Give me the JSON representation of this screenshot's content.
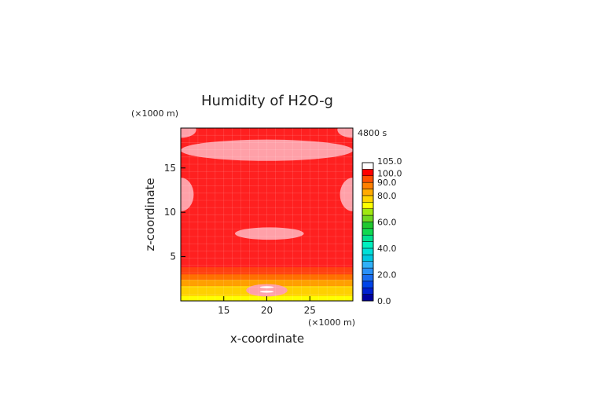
{
  "chart_data": {
    "type": "heatmap",
    "title": "Humidity of H2O-g",
    "xlabel": "x-coordinate",
    "ylabel": "z-coordinate",
    "x_unit": "(×1000 m)",
    "y_unit": "(×1000 m)",
    "time_label": "4800 s",
    "xlim": [
      10,
      30
    ],
    "ylim": [
      0,
      19.5
    ],
    "x_ticks": [
      15,
      20,
      25
    ],
    "y_ticks": [
      5,
      10,
      15
    ],
    "colorbar": {
      "labels": [
        "105.0",
        "100.0",
        "90.0",
        "80.0",
        "60.0",
        "40.0",
        "20.0",
        "0.0"
      ],
      "levels": [
        0,
        5,
        10,
        15,
        20,
        25,
        30,
        35,
        40,
        45,
        50,
        55,
        60,
        65,
        70,
        75,
        80,
        85,
        90,
        95,
        100,
        105
      ],
      "colors": [
        "#0000a0",
        "#0020d0",
        "#0044e8",
        "#1a6cf0",
        "#2a90f8",
        "#30b0f8",
        "#00c8e0",
        "#00e0d8",
        "#00f0c0",
        "#00e090",
        "#10d850",
        "#20c830",
        "#70d820",
        "#a0e810",
        "#ffff00",
        "#ffd400",
        "#ffaa00",
        "#ff8000",
        "#ff5000",
        "#ff0000",
        "#ffffff"
      ]
    },
    "field_colors": {
      "saturated": "#ff2020",
      "supersaturated": "#ffa0a8",
      "level_95": "#ff4010",
      "level_90": "#ff7000",
      "level_85": "#ffa000",
      "level_80": "#ffd000",
      "level_75": "#ffff00",
      "peak": "#ffffff"
    },
    "regions": [
      {
        "name": "upper-supersaturated-band",
        "x_center": 20,
        "z_center": 17.0,
        "x_halfwidth": 10,
        "z_halfwidth": 1.2,
        "value": 102
      },
      {
        "name": "top-left-corner-patch",
        "x_center": 10,
        "z_center": 19.3,
        "x_halfwidth": 1.8,
        "z_halfwidth": 0.9,
        "value": 102
      },
      {
        "name": "top-right-corner-patch",
        "x_center": 30,
        "z_center": 19.3,
        "x_halfwidth": 1.8,
        "z_halfwidth": 0.9,
        "value": 102
      },
      {
        "name": "left-edge-patch",
        "x_center": 10,
        "z_center": 12.0,
        "x_halfwidth": 1.5,
        "z_halfwidth": 1.9,
        "value": 102
      },
      {
        "name": "right-edge-patch",
        "x_center": 30,
        "z_center": 12.0,
        "x_halfwidth": 1.5,
        "z_halfwidth": 1.9,
        "value": 102
      },
      {
        "name": "mid-level-patch",
        "x_center": 20.3,
        "z_center": 7.6,
        "x_halfwidth": 4.0,
        "z_halfwidth": 0.7,
        "value": 102
      },
      {
        "name": "low-level-core",
        "x_center": 20,
        "z_center": 1.2,
        "x_halfwidth": 2.4,
        "z_halfwidth": 0.7,
        "value": 101
      }
    ],
    "bands_low": [
      {
        "z_min": 3.0,
        "z_max": 3.8,
        "value": 95
      },
      {
        "z_min": 2.4,
        "z_max": 3.0,
        "value": 90
      },
      {
        "z_min": 1.7,
        "z_max": 2.4,
        "value": 85
      },
      {
        "z_min": 0.6,
        "z_max": 1.7,
        "value": 82
      },
      {
        "z_min": 0.0,
        "z_max": 0.6,
        "value": 76
      }
    ]
  }
}
